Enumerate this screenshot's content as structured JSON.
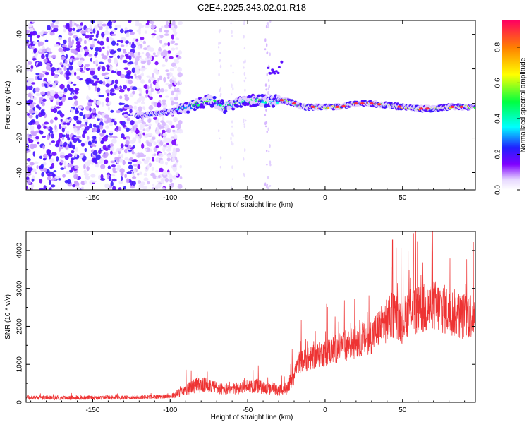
{
  "chart_data": [
    {
      "type": "heatmap",
      "title": "C2E4.2025.343.02.01.R18",
      "xlabel": "Height of straight line (km)",
      "ylabel": "Frequency (Hz)",
      "xlim": [
        -193,
        97
      ],
      "ylim": [
        -50,
        48
      ],
      "x_ticks": [
        -150,
        -100,
        -50,
        0,
        50
      ],
      "y_ticks": [
        -40,
        -20,
        0,
        20,
        40
      ],
      "colorbar": {
        "label": "Normalized spectral amplitude",
        "range": [
          0,
          0.95
        ],
        "ticks": [
          0.0,
          0.2,
          0.4,
          0.6,
          0.8
        ]
      },
      "ridge": {
        "description_values": "center frequency (Hz) vs height (km)",
        "x": [
          -120,
          -100,
          -85,
          -75,
          -65,
          -55,
          -45,
          -35,
          -28,
          -20,
          -15,
          0,
          10,
          20,
          30,
          40,
          50,
          60,
          70,
          80,
          90,
          97
        ],
        "y": [
          -7,
          -5,
          -1,
          2,
          -2,
          1,
          2,
          1,
          2,
          0,
          -2,
          -2,
          -2,
          0,
          0,
          -1,
          -2,
          -3,
          -3,
          -2,
          -2,
          -2
        ]
      }
    },
    {
      "type": "line",
      "xlabel": "Height of straight line (km)",
      "ylabel": "SNR (10 * v/v)",
      "xlim": [
        -193,
        97
      ],
      "ylim": [
        0,
        4500
      ],
      "x_ticks": [
        -150,
        -100,
        -50,
        0,
        50
      ],
      "y_ticks": [
        0,
        1000,
        2000,
        3000,
        4000
      ],
      "series": [
        {
          "name": "SNR",
          "color": "#ee3333",
          "trend_x": [
            -193,
            -150,
            -120,
            -100,
            -95,
            -85,
            -75,
            -70,
            -62,
            -55,
            -45,
            -40,
            -35,
            -28,
            -25,
            -21,
            -17,
            -10,
            0,
            10,
            20,
            30,
            40,
            45,
            50,
            55,
            60,
            70,
            80,
            90,
            97
          ],
          "trend_y": [
            120,
            120,
            130,
            160,
            230,
            430,
            470,
            380,
            310,
            390,
            450,
            380,
            330,
            320,
            280,
            700,
            1050,
            1150,
            1300,
            1450,
            1600,
            1750,
            2150,
            2350,
            2100,
            2500,
            2400,
            2550,
            2400,
            2250,
            2350
          ]
        }
      ]
    }
  ]
}
